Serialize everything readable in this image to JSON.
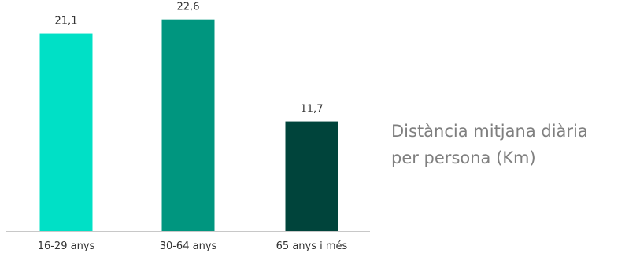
{
  "chart_data": {
    "type": "bar",
    "title_lines": [
      "Distància mitjana diària",
      "per persona (Km)"
    ],
    "xlabel": "",
    "ylabel": "",
    "categories": [
      "16-29 anys",
      "30-64 anys",
      "65 anys i més"
    ],
    "values": [
      21.1,
      22.6,
      11.7
    ],
    "value_labels": [
      "21,1",
      "22,6",
      "11,7"
    ],
    "colors": [
      "#00e0c6",
      "#00967f",
      "#00443b"
    ],
    "ylim": [
      0,
      24
    ],
    "grid": false,
    "legend": "none"
  }
}
